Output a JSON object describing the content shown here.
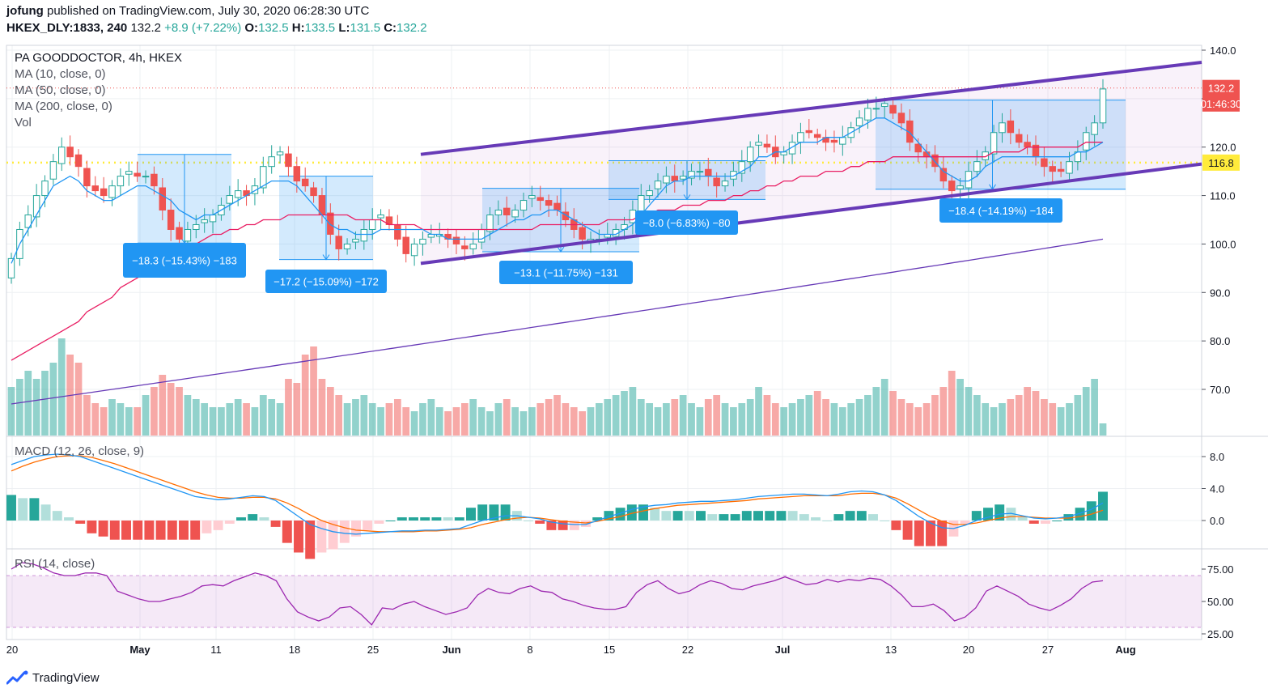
{
  "header": {
    "author": "jofung",
    "published_text": "published on TradingView.com, July 30, 2020 06:28:30 UTC",
    "symbol": "HKEX_DLY:1833, 240",
    "last": "132.2",
    "change": "+8.9 (+7.22%)",
    "o_label": "O:",
    "o": "132.5",
    "h_label": "H:",
    "h": "133.5",
    "l_label": "L:",
    "l": "131.5",
    "c_label": "C:",
    "c": "132.2"
  },
  "legend": {
    "title": "PA GOODDOCTOR, 4h, HKEX",
    "ma10": "MA (10, close, 0)",
    "ma50": "MA (50, close, 0)",
    "ma200": "MA (200, close, 0)",
    "vol": "Vol",
    "macd": "MACD (12, 26, close, 9)",
    "rsi": "RSI (14, close)"
  },
  "footer": {
    "brand": "TradingView"
  },
  "colors": {
    "up": "#26a69a",
    "down": "#ef5350",
    "ma10": "#2196f3",
    "ma50": "#e91e63",
    "ma200": "#673ab7",
    "channel": "#673ab7",
    "box": "#2196f3",
    "support": "#ffeb3b",
    "macd": "#2196f3",
    "signal": "#ff6d00",
    "rsi": "#9c27b0"
  },
  "chart_data": [
    {
      "type": "candlestick",
      "title": "PA GOODDOCTOR, 4h, HKEX",
      "y_ticks": [
        140.0,
        130.0,
        120.0,
        110.0,
        100.0,
        90.0,
        80.0,
        70.0
      ],
      "y_tick_labels": [
        "140.0",
        "130.0",
        "120.0",
        "110.0",
        "100.0",
        "90.0",
        "80.0",
        "70.0"
      ],
      "ylim": [
        62,
        142
      ],
      "x_tick_labels": [
        "20",
        "May",
        "11",
        "18",
        "25",
        "Jun",
        "8",
        "15",
        "22",
        "Jul",
        "13",
        "20",
        "27",
        "Aug"
      ],
      "price_tags": [
        {
          "label": "132.2",
          "value": 132.2
        },
        {
          "label": "01:46:30",
          "value": 129.0
        },
        {
          "label": "116.8",
          "value": 116.8
        }
      ],
      "support_level": 116.8,
      "closes": [
        97,
        103,
        106,
        110,
        113,
        117,
        120,
        118,
        116,
        112,
        111,
        110,
        112,
        114,
        115,
        114,
        114,
        112,
        107,
        103,
        101,
        103,
        104,
        105,
        106,
        108,
        110,
        111,
        110,
        112,
        116,
        118,
        119,
        116,
        113,
        112,
        110,
        106,
        102,
        99,
        100,
        101,
        103,
        105,
        106,
        104,
        101,
        98,
        100,
        101,
        102,
        102,
        101,
        100,
        99,
        100,
        103,
        106,
        107,
        106,
        107,
        109,
        110,
        109,
        108,
        107,
        105,
        103,
        101,
        101,
        101,
        102,
        103,
        104,
        107,
        110,
        111,
        113,
        114,
        113,
        114,
        115,
        115,
        114,
        112,
        113,
        115,
        117,
        120,
        121,
        120,
        118,
        119,
        121,
        123,
        123,
        122,
        121,
        121,
        122,
        124,
        126,
        128,
        128,
        129,
        127,
        125,
        121,
        119,
        118,
        116,
        113,
        111,
        112,
        115,
        117,
        119,
        123,
        125,
        123,
        121,
        120,
        118,
        116,
        115,
        115,
        117,
        119,
        123,
        125,
        132
      ],
      "ma10": [
        96,
        100,
        103,
        106,
        109,
        112,
        113,
        114,
        113,
        111,
        110,
        109,
        109,
        110,
        111,
        112,
        112,
        111,
        110,
        109,
        107,
        106,
        105,
        106,
        106,
        107,
        108,
        109,
        110,
        111,
        112,
        113,
        113,
        113,
        112,
        110,
        108,
        106,
        104,
        103,
        103,
        102,
        102,
        102,
        103,
        103,
        103,
        103,
        103,
        103,
        102,
        102,
        101,
        101,
        101,
        101,
        101,
        102,
        103,
        104,
        105,
        105,
        106,
        106,
        107,
        107,
        106,
        105,
        104,
        103,
        102,
        102,
        102,
        103,
        104,
        106,
        108,
        110,
        112,
        113,
        113,
        114,
        114,
        114,
        114,
        114,
        114,
        115,
        116,
        118,
        118,
        119,
        119,
        120,
        121,
        121,
        121,
        122,
        122,
        122,
        123,
        124,
        125,
        126,
        126,
        125,
        124,
        123,
        121,
        119,
        117,
        115,
        114,
        113,
        113,
        114,
        116,
        117,
        118,
        118,
        118,
        118,
        118,
        118,
        118,
        118,
        118,
        119,
        119,
        120,
        121
      ],
      "ma50": [
        76,
        77,
        78,
        79,
        80,
        81,
        82,
        83,
        84,
        86,
        87,
        88,
        89,
        91,
        92,
        93,
        94,
        95,
        96,
        97,
        98,
        99,
        100,
        101,
        102,
        102,
        103,
        103,
        104,
        104,
        105,
        105,
        105,
        106,
        106,
        106,
        106,
        106,
        106,
        106,
        106,
        105,
        105,
        105,
        105,
        104,
        104,
        104,
        104,
        103,
        103,
        103,
        103,
        103,
        103,
        103,
        103,
        103,
        103,
        103,
        103,
        103,
        103,
        104,
        104,
        104,
        104,
        104,
        104,
        104,
        104,
        105,
        105,
        105,
        105,
        106,
        106,
        107,
        107,
        107,
        108,
        108,
        108,
        109,
        109,
        109,
        110,
        110,
        111,
        111,
        112,
        112,
        113,
        113,
        114,
        114,
        114,
        115,
        115,
        115,
        116,
        116,
        117,
        117,
        117,
        118,
        118,
        118,
        118,
        118,
        118,
        118,
        118,
        118,
        118,
        118,
        118,
        119,
        119,
        119,
        119,
        120,
        120,
        120,
        120,
        120,
        120,
        120,
        121,
        121,
        121
      ],
      "ma200_range": [
        67.0,
        101.0
      ],
      "volume": [
        12,
        14,
        16,
        14,
        16,
        18,
        24,
        20,
        18,
        10,
        8,
        7,
        9,
        8,
        7,
        7,
        10,
        12,
        15,
        13,
        12,
        10,
        9,
        8,
        7,
        7,
        8,
        9,
        8,
        7,
        10,
        9,
        8,
        14,
        13,
        20,
        22,
        14,
        12,
        10,
        8,
        9,
        10,
        8,
        7,
        8,
        9,
        7,
        6,
        8,
        9,
        7,
        6,
        7,
        8,
        9,
        7,
        6,
        8,
        9,
        7,
        6,
        7,
        8,
        9,
        10,
        8,
        7,
        6,
        7,
        8,
        9,
        10,
        11,
        12,
        9,
        8,
        7,
        8,
        9,
        10,
        8,
        7,
        9,
        10,
        8,
        7,
        8,
        9,
        12,
        10,
        8,
        7,
        8,
        9,
        10,
        11,
        9,
        8,
        7,
        8,
        9,
        10,
        12,
        14,
        11,
        9,
        8,
        7,
        8,
        10,
        12,
        16,
        14,
        12,
        10,
        8,
        7,
        8,
        9,
        10,
        12,
        11,
        9,
        8,
        7,
        8,
        10,
        12,
        14,
        3
      ],
      "channel": [
        {
          "upper_start": 118.5,
          "upper_end": 137.5,
          "lower_start": 96.0,
          "lower_end": 116.5
        }
      ],
      "measure_boxes": [
        {
          "label": "−18.3 (−15.43%) −183",
          "high": 118.5,
          "low": 100.2
        },
        {
          "label": "−17.2 (−15.09%) −172",
          "high": 114.0,
          "low": 96.8
        },
        {
          "label": "−13.1 (−11.75%) −131",
          "high": 111.5,
          "low": 98.4
        },
        {
          "label": "−8.0 (−6.83%) −80",
          "high": 117.2,
          "low": 109.2
        },
        {
          "label": "−18.4 (−14.19%) −184",
          "high": 129.7,
          "low": 111.3
        }
      ]
    },
    {
      "type": "line",
      "title": "MACD (12, 26, close, 9)",
      "y_ticks": [
        8.0,
        4.0,
        0.0
      ],
      "y_tick_labels": [
        "8.0",
        "4.0",
        "0.0"
      ],
      "ylim": [
        -4,
        10
      ],
      "macd": [
        7,
        7.5,
        8,
        8.2,
        8.3,
        8.2,
        8,
        7.5,
        7,
        6.5,
        6,
        5.5,
        5,
        4.5,
        4,
        3.5,
        3,
        2.8,
        2.6,
        2.7,
        2.9,
        3.1,
        3,
        2.5,
        1.5,
        0.5,
        -0.5,
        -1,
        -1.4,
        -1.6,
        -1.7,
        -1.6,
        -1.5,
        -1.4,
        -1.3,
        -1.3,
        -1.2,
        -1.2,
        -1.1,
        -1,
        -0.5,
        0,
        0.3,
        0.6,
        0.6,
        0.4,
        0.2,
        -0.2,
        -0.4,
        -0.5,
        -0.5,
        0,
        0.5,
        0.9,
        1.4,
        1.7,
        1.9,
        2,
        2.2,
        2.3,
        2.4,
        2.4,
        2.5,
        2.6,
        2.8,
        3,
        3.1,
        3.2,
        3.3,
        3.3,
        3.2,
        3.1,
        3.3,
        3.6,
        3.7,
        3.6,
        3.2,
        2.5,
        1.5,
        0.5,
        -0.3,
        -0.9,
        -1,
        -0.6,
        0,
        0.4,
        0.8,
        0.9,
        0.6,
        0.3,
        0.2,
        0.3,
        0.5,
        0.9,
        1.4,
        2.2
      ],
      "signal": [
        6.2,
        6.8,
        7.3,
        7.7,
        8,
        8.1,
        8.1,
        7.9,
        7.5,
        7.1,
        6.6,
        6.1,
        5.6,
        5.1,
        4.6,
        4.1,
        3.6,
        3.2,
        2.9,
        2.8,
        2.8,
        2.9,
        2.9,
        2.7,
        2.2,
        1.5,
        0.7,
        0,
        -0.5,
        -0.9,
        -1.2,
        -1.3,
        -1.4,
        -1.4,
        -1.4,
        -1.4,
        -1.3,
        -1.3,
        -1.2,
        -1.1,
        -0.9,
        -0.5,
        -0.2,
        0.1,
        0.3,
        0.4,
        0.3,
        0.1,
        -0.1,
        -0.2,
        -0.3,
        -0.1,
        0.2,
        0.5,
        0.9,
        1.2,
        1.5,
        1.7,
        1.9,
        2,
        2.1,
        2.2,
        2.3,
        2.4,
        2.5,
        2.7,
        2.8,
        2.9,
        3,
        3.1,
        3.1,
        3.1,
        3.1,
        3.3,
        3.4,
        3.4,
        3.2,
        2.8,
        2.1,
        1.3,
        0.5,
        -0.1,
        -0.5,
        -0.5,
        -0.3,
        0,
        0.3,
        0.5,
        0.5,
        0.4,
        0.3,
        0.3,
        0.3,
        0.5,
        0.8,
        1.3
      ]
    },
    {
      "type": "line",
      "title": "RSI (14, close)",
      "y_ticks": [
        75.0,
        50.0,
        25.0
      ],
      "y_tick_labels": [
        "75.00",
        "50.00",
        "25.00"
      ],
      "ylim": [
        22,
        82
      ],
      "band": [
        30,
        70
      ],
      "values": [
        75,
        80,
        79,
        76,
        72,
        70,
        70,
        72,
        72,
        70,
        58,
        55,
        52,
        50,
        50,
        52,
        54,
        57,
        62,
        63,
        62,
        66,
        69,
        72,
        70,
        66,
        52,
        42,
        38,
        35,
        38,
        45,
        46,
        40,
        32,
        45,
        44,
        48,
        50,
        46,
        43,
        40,
        42,
        45,
        55,
        60,
        57,
        56,
        60,
        62,
        58,
        57,
        52,
        50,
        47,
        45,
        44,
        44,
        46,
        57,
        63,
        66,
        60,
        56,
        58,
        63,
        66,
        64,
        60,
        59,
        62,
        64,
        66,
        69,
        66,
        63,
        64,
        67,
        65,
        67,
        66,
        68,
        67,
        62,
        55,
        46,
        46,
        48,
        43,
        35,
        38,
        45,
        58,
        62,
        58,
        54,
        48,
        45,
        43,
        47,
        52,
        60,
        65,
        66
      ]
    }
  ]
}
